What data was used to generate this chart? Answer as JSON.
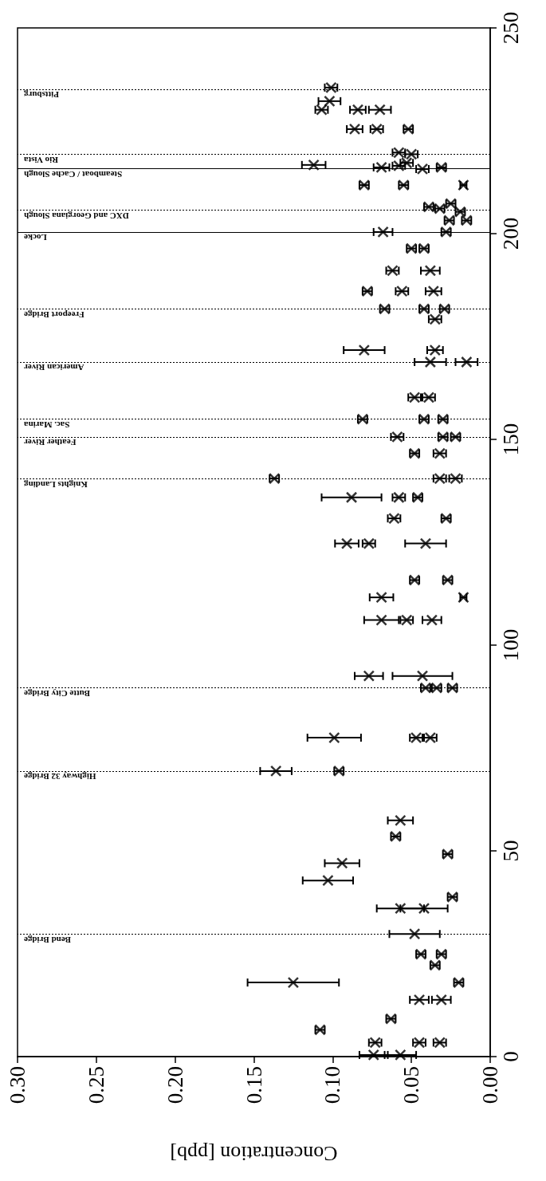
{
  "chart_data": {
    "type": "scatter",
    "xlabel": "Concentration [ppb]",
    "marker": "cross",
    "ylim": [
      0,
      250
    ],
    "yticks": [
      0,
      50,
      100,
      150,
      200,
      250
    ],
    "xlim": [
      0.3,
      0
    ],
    "xticks": [
      {
        "value": 0.3,
        "label": "0.30"
      },
      {
        "value": 0.25,
        "label": "0.25"
      },
      {
        "value": 0.2,
        "label": "0.20"
      },
      {
        "value": 0.15,
        "label": "0.15"
      },
      {
        "value": 0.1,
        "label": "0.10"
      },
      {
        "value": 0.05,
        "label": "0.05"
      },
      {
        "value": 0,
        "label": "0.00"
      }
    ],
    "series": [
      {
        "color": "#000000",
        "values": [
          235.5,
          232.2,
          230.1,
          230.1,
          230.1,
          225.4,
          225.4,
          225.4,
          219.7,
          219.3,
          216.7,
          216.1,
          216.5,
          217.2,
          215.7,
          216.1,
          211.8,
          211.8,
          211.8,
          206.5,
          206.1,
          207.3,
          205.3,
          203.2,
          203.2,
          200.4,
          200.4,
          196.4,
          196.4,
          191.0,
          191.0,
          186.0,
          186.0,
          186.0,
          181.7,
          181.7,
          181.7,
          179.2,
          171.7,
          171.7,
          168.8,
          168.8,
          160.2,
          160.2,
          154.9,
          154.9,
          154.9,
          150.6,
          150.6,
          150.6,
          146.6,
          146.6,
          140.5,
          140.5,
          140.5,
          135.9,
          135.9,
          135.9,
          130.8,
          130.8,
          124.7,
          124.7,
          124.7,
          115.8,
          115.8,
          111.6,
          111.6,
          106.1,
          106.1,
          106.1,
          92.5,
          92.5,
          89.6,
          89.6,
          89.6,
          77.5,
          77.5,
          77.5,
          69.4,
          69.4,
          57.4,
          53.5,
          49.2,
          47.0,
          42.8,
          38.8,
          36.0,
          36.0,
          29.8,
          24.9,
          24.9,
          22.2,
          18.0,
          18.0,
          13.8,
          13.8,
          9.2,
          6.5,
          3.4,
          3.4,
          3.4,
          0.4,
          0.4
        ],
        "x": [
          0.101,
          0.102,
          0.107,
          0.084,
          0.07,
          0.086,
          0.072,
          0.052,
          0.058,
          0.05,
          0.112,
          0.069,
          0.058,
          0.053,
          0.043,
          0.031,
          0.08,
          0.055,
          0.017,
          0.039,
          0.032,
          0.025,
          0.019,
          0.026,
          0.015,
          0.028,
          0.068,
          0.05,
          0.042,
          0.062,
          0.038,
          0.078,
          0.056,
          0.036,
          0.067,
          0.042,
          0.029,
          0.035,
          0.08,
          0.035,
          0.038,
          0.015,
          0.048,
          0.039,
          0.081,
          0.042,
          0.03,
          0.059,
          0.03,
          0.022,
          0.048,
          0.032,
          0.137,
          0.032,
          0.022,
          0.088,
          0.058,
          0.046,
          0.061,
          0.028,
          0.091,
          0.077,
          0.041,
          0.048,
          0.027,
          0.069,
          0.017,
          0.069,
          0.053,
          0.037,
          0.077,
          0.043,
          0.041,
          0.034,
          0.024,
          0.099,
          0.047,
          0.038,
          0.136,
          0.096,
          0.057,
          0.06,
          0.027,
          0.094,
          0.103,
          0.024,
          0.057,
          0.042,
          0.048,
          0.044,
          0.031,
          0.035,
          0.125,
          0.02,
          0.045,
          0.031,
          0.063,
          0.108,
          0.073,
          0.045,
          0.032,
          0.074,
          0.057
        ],
        "xerrors": [
          0.004,
          0.007,
          0.004,
          0.005,
          0.007,
          0.005,
          0.004,
          0.003,
          0.004,
          0.004,
          0.0075,
          0.005,
          0.004,
          0.004,
          0.004,
          0.003,
          0.003,
          0.003,
          0.002,
          0.003,
          0.003,
          0.003,
          0.003,
          0.003,
          0.003,
          0.003,
          0.006,
          0.003,
          0.003,
          0.004,
          0.006,
          0.003,
          0.004,
          0.005,
          0.003,
          0.003,
          0.003,
          0.004,
          0.013,
          0.005,
          0.01,
          0.007,
          0.004,
          0.004,
          0.003,
          0.003,
          0.003,
          0.004,
          0.003,
          0.003,
          0.003,
          0.004,
          0.003,
          0.004,
          0.004,
          0.019,
          0.004,
          0.003,
          0.004,
          0.003,
          0.0075,
          0.004,
          0.013,
          0.003,
          0.003,
          0.0075,
          0.002,
          0.011,
          0.004,
          0.006,
          0.009,
          0.019,
          0.003,
          0.003,
          0.003,
          0.017,
          0.004,
          0.004,
          0.01,
          0.003,
          0.008,
          0.003,
          0.003,
          0.011,
          0.016,
          0.003,
          0.015,
          0.015,
          0.016,
          0.003,
          0.003,
          0.003,
          0.029,
          0.003,
          0.006,
          0.006,
          0.003,
          0.003,
          0.004,
          0.004,
          0.004,
          0.009,
          0.01
        ]
      }
    ],
    "ref_lines": [
      {
        "axis": "y",
        "value": 29.8,
        "label": "Bend Bridge",
        "line_style": "dotted"
      },
      {
        "axis": "y",
        "value": 69.4,
        "label": "Highway 32 Bridge",
        "line_style": "dotted"
      },
      {
        "axis": "y",
        "value": 89.6,
        "label": "Butte City Bridge",
        "line_style": "dotted"
      },
      {
        "axis": "y",
        "value": 140.5,
        "label": "Knights Landing",
        "line_style": "dotted"
      },
      {
        "axis": "y",
        "value": 150.6,
        "label": "Feather River",
        "line_style": "dotted"
      },
      {
        "axis": "y",
        "value": 154.9,
        "label": "Sac. Marina",
        "line_style": "dotted"
      },
      {
        "axis": "y",
        "value": 168.8,
        "label": "American River",
        "line_style": "dotted"
      },
      {
        "axis": "y",
        "value": 181.7,
        "label": "Freeport Bridge",
        "line_style": "dotted"
      },
      {
        "axis": "y",
        "value": 200.4,
        "label": "Locke",
        "line_style": "solid"
      },
      {
        "axis": "y",
        "value": 205.8,
        "label": "DXC and Georgiana Slough",
        "line_style": "dotted"
      },
      {
        "axis": "y",
        "value": 215.8,
        "label": "Steamboat / Cache Slough",
        "line_style": "solid"
      },
      {
        "axis": "y",
        "value": 219.3,
        "label": "Rio Vista",
        "line_style": "dotted"
      },
      {
        "axis": "y",
        "value": 235.1,
        "label": "Pittsburg",
        "line_style": "dotted"
      }
    ]
  }
}
